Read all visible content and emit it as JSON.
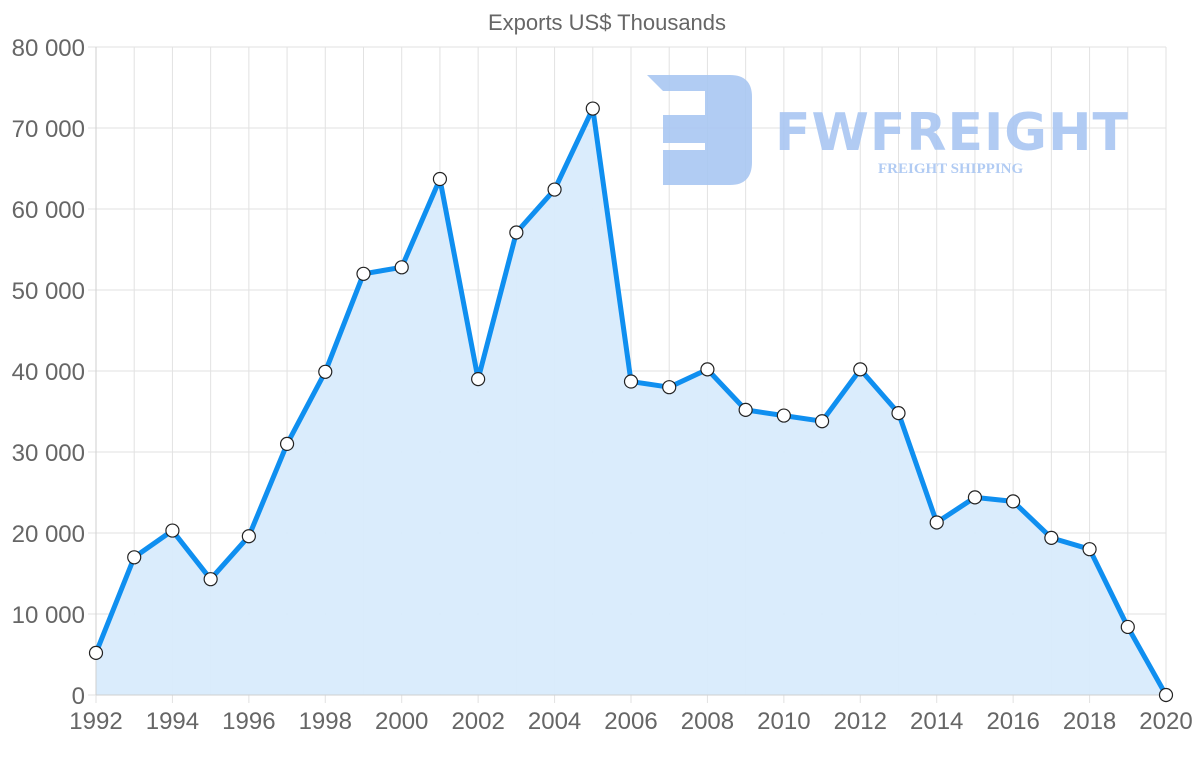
{
  "chart_data": {
    "type": "line",
    "title": "Exports US$ Thousands",
    "xlabel": "",
    "ylabel": "",
    "x": [
      1992,
      1993,
      1994,
      1995,
      1996,
      1997,
      1998,
      1999,
      2000,
      2001,
      2002,
      2003,
      2004,
      2005,
      2006,
      2007,
      2008,
      2009,
      2010,
      2011,
      2012,
      2013,
      2014,
      2015,
      2016,
      2017,
      2018,
      2019,
      2020
    ],
    "series": [
      {
        "name": "Exports US$ Thousands",
        "values": [
          5200,
          17000,
          20300,
          14300,
          19600,
          31000,
          39900,
          52000,
          52800,
          63700,
          39000,
          57100,
          62400,
          72400,
          38700,
          38000,
          40200,
          35200,
          34500,
          33800,
          40200,
          34800,
          21300,
          24400,
          23900,
          19400,
          18000,
          8400,
          0
        ],
        "fill": true
      }
    ],
    "ylim": [
      0,
      80000
    ],
    "xlim": [
      1992,
      2020
    ],
    "y_ticks": [
      "0",
      "10 000",
      "20 000",
      "30 000",
      "40 000",
      "50 000",
      "60 000",
      "70 000",
      "80 000"
    ],
    "x_ticks": [
      "1992",
      "1994",
      "1996",
      "1998",
      "2000",
      "2002",
      "2004",
      "2006",
      "2008",
      "2010",
      "2012",
      "2014",
      "2016",
      "2018",
      "2020"
    ],
    "grid": true,
    "legend": "none"
  },
  "colors": {
    "line": "#0f8ff0",
    "fill": "#d8ebfc",
    "grid": "#e2e2e2",
    "text": "#666666",
    "watermark": "#a9c6f2"
  },
  "watermark": {
    "brand": "FWFREIGHT",
    "tagline": "FREIGHT SHIPPING"
  }
}
